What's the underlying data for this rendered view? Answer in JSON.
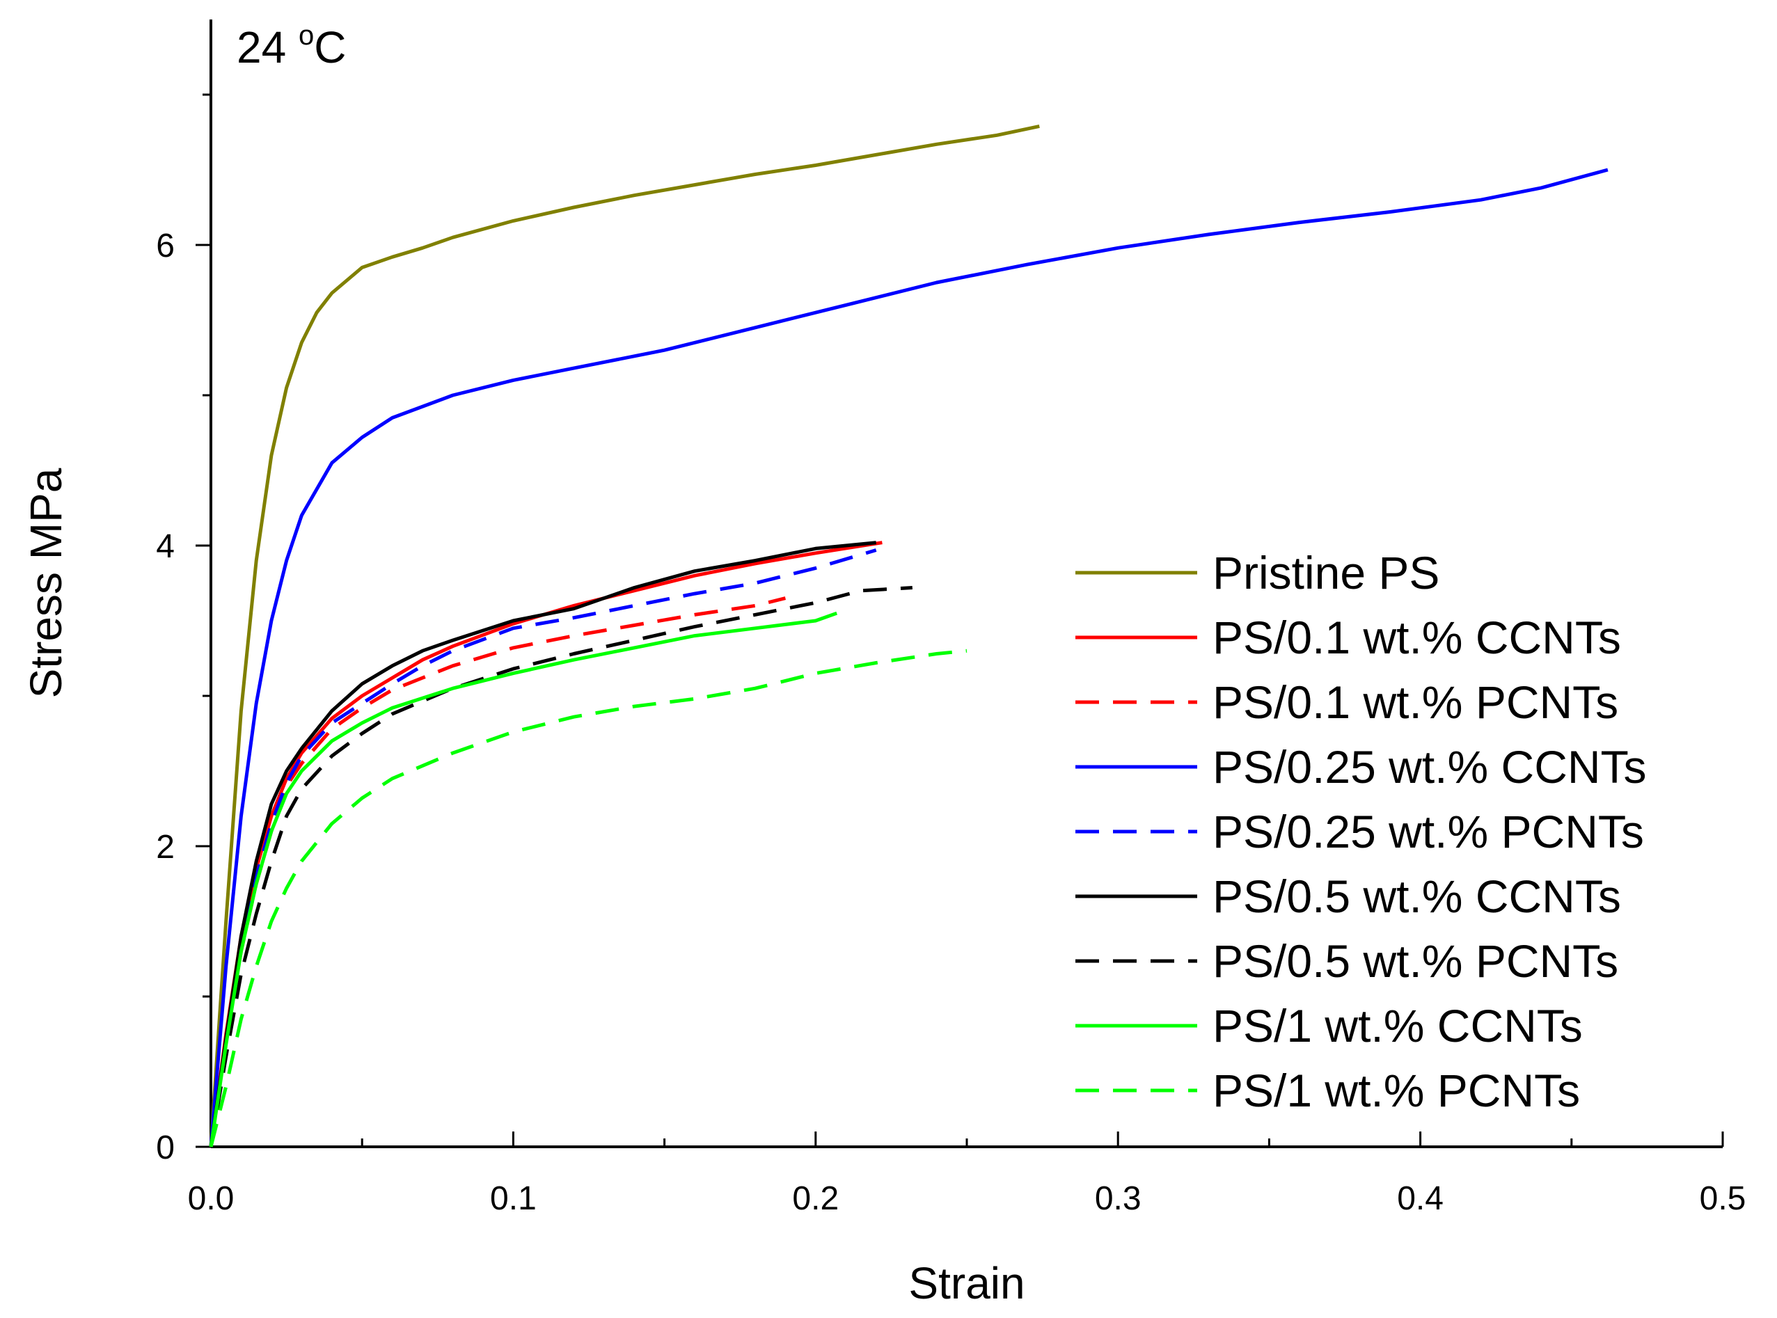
{
  "chart_data": {
    "type": "line",
    "title": "",
    "annotation": {
      "text": "24 ",
      "superscript": "o",
      "unit": "C"
    },
    "xlabel": "Strain",
    "ylabel": "Stress MPa",
    "xlim": [
      0,
      0.5
    ],
    "ylim": [
      0,
      7.5
    ],
    "x_major_ticks": [
      0,
      0.1,
      0.2,
      0.3,
      0.4,
      0.5
    ],
    "x_tick_labels": [
      "0.0",
      "0.1",
      "0.2",
      "0.3",
      "0.4",
      "0.5"
    ],
    "x_minor_ticks": [
      0.05,
      0.15,
      0.25,
      0.35,
      0.45
    ],
    "y_major_ticks": [
      0,
      2,
      4,
      6
    ],
    "y_tick_labels": [
      "0",
      "2",
      "4",
      "6"
    ],
    "y_minor_ticks": [
      1,
      3,
      5,
      7
    ],
    "grid": false,
    "legend_position": "center-right",
    "series": [
      {
        "name": "Pristine PS",
        "color": "#808000",
        "dashed": false,
        "x": [
          0,
          0.005,
          0.01,
          0.015,
          0.02,
          0.025,
          0.03,
          0.035,
          0.04,
          0.05,
          0.06,
          0.07,
          0.08,
          0.1,
          0.12,
          0.14,
          0.16,
          0.18,
          0.2,
          0.22,
          0.24,
          0.26,
          0.274
        ],
        "y": [
          0,
          1.5,
          2.9,
          3.9,
          4.6,
          5.05,
          5.35,
          5.55,
          5.68,
          5.85,
          5.92,
          5.98,
          6.05,
          6.16,
          6.25,
          6.33,
          6.4,
          6.47,
          6.53,
          6.6,
          6.67,
          6.73,
          6.79
        ]
      },
      {
        "name": "PS/0.1 wt.% CCNTs",
        "color": "#ff0000",
        "dashed": false,
        "x": [
          0,
          0.005,
          0.01,
          0.015,
          0.02,
          0.025,
          0.03,
          0.04,
          0.05,
          0.06,
          0.07,
          0.08,
          0.1,
          0.12,
          0.14,
          0.16,
          0.18,
          0.2,
          0.222
        ],
        "y": [
          0,
          0.75,
          1.4,
          1.85,
          2.2,
          2.45,
          2.62,
          2.85,
          3.0,
          3.12,
          3.24,
          3.33,
          3.48,
          3.6,
          3.7,
          3.8,
          3.88,
          3.95,
          4.02
        ]
      },
      {
        "name": "PS/0.1 wt.% PCNTs",
        "color": "#ff0000",
        "dashed": true,
        "x": [
          0,
          0.005,
          0.01,
          0.015,
          0.02,
          0.025,
          0.03,
          0.04,
          0.05,
          0.06,
          0.07,
          0.08,
          0.1,
          0.12,
          0.14,
          0.16,
          0.18,
          0.19
        ],
        "y": [
          0,
          0.7,
          1.3,
          1.75,
          2.1,
          2.4,
          2.55,
          2.78,
          2.92,
          3.04,
          3.12,
          3.2,
          3.32,
          3.4,
          3.47,
          3.54,
          3.6,
          3.65
        ]
      },
      {
        "name": "PS/0.25 wt.% CCNTs",
        "color": "#0000ff",
        "dashed": false,
        "x": [
          0,
          0.005,
          0.01,
          0.015,
          0.02,
          0.025,
          0.03,
          0.04,
          0.05,
          0.06,
          0.08,
          0.1,
          0.12,
          0.15,
          0.18,
          0.21,
          0.24,
          0.27,
          0.3,
          0.33,
          0.36,
          0.39,
          0.42,
          0.44,
          0.462
        ],
        "y": [
          0,
          1.2,
          2.2,
          2.95,
          3.5,
          3.9,
          4.2,
          4.55,
          4.72,
          4.85,
          5.0,
          5.1,
          5.18,
          5.3,
          5.45,
          5.6,
          5.75,
          5.87,
          5.98,
          6.07,
          6.15,
          6.22,
          6.3,
          6.38,
          6.5
        ]
      },
      {
        "name": "PS/0.25 wt.% PCNTs",
        "color": "#0000ff",
        "dashed": true,
        "x": [
          0,
          0.005,
          0.01,
          0.015,
          0.02,
          0.025,
          0.03,
          0.04,
          0.05,
          0.06,
          0.07,
          0.08,
          0.1,
          0.12,
          0.14,
          0.16,
          0.18,
          0.2,
          0.22
        ],
        "y": [
          0,
          0.72,
          1.35,
          1.8,
          2.15,
          2.42,
          2.6,
          2.82,
          2.95,
          3.08,
          3.2,
          3.3,
          3.45,
          3.52,
          3.6,
          3.68,
          3.75,
          3.85,
          3.97
        ]
      },
      {
        "name": "PS/0.5 wt.% CCNTs",
        "color": "#000000",
        "dashed": false,
        "x": [
          0,
          0.005,
          0.01,
          0.015,
          0.02,
          0.025,
          0.03,
          0.04,
          0.05,
          0.06,
          0.07,
          0.08,
          0.1,
          0.12,
          0.14,
          0.16,
          0.18,
          0.2,
          0.22
        ],
        "y": [
          0,
          0.72,
          1.4,
          1.9,
          2.28,
          2.5,
          2.65,
          2.9,
          3.08,
          3.2,
          3.3,
          3.37,
          3.5,
          3.58,
          3.72,
          3.83,
          3.9,
          3.98,
          4.02
        ]
      },
      {
        "name": "PS/0.5 wt.% PCNTs",
        "color": "#000000",
        "dashed": true,
        "x": [
          0,
          0.005,
          0.01,
          0.015,
          0.02,
          0.025,
          0.03,
          0.04,
          0.05,
          0.06,
          0.08,
          0.1,
          0.12,
          0.14,
          0.16,
          0.18,
          0.2,
          0.215,
          0.232
        ],
        "y": [
          0,
          0.6,
          1.15,
          1.55,
          1.9,
          2.2,
          2.38,
          2.6,
          2.75,
          2.88,
          3.05,
          3.18,
          3.28,
          3.37,
          3.46,
          3.54,
          3.62,
          3.7,
          3.72
        ]
      },
      {
        "name": "PS/1 wt.% CCNTs",
        "color": "#00ff00",
        "dashed": false,
        "x": [
          0,
          0.005,
          0.01,
          0.015,
          0.02,
          0.025,
          0.03,
          0.04,
          0.05,
          0.06,
          0.08,
          0.1,
          0.12,
          0.14,
          0.16,
          0.18,
          0.2,
          0.207
        ],
        "y": [
          0,
          0.68,
          1.3,
          1.75,
          2.1,
          2.35,
          2.5,
          2.7,
          2.82,
          2.92,
          3.05,
          3.15,
          3.24,
          3.32,
          3.4,
          3.45,
          3.5,
          3.55
        ]
      },
      {
        "name": "PS/1 wt.% PCNTs",
        "color": "#00ff00",
        "dashed": true,
        "x": [
          0,
          0.005,
          0.01,
          0.015,
          0.02,
          0.025,
          0.03,
          0.04,
          0.05,
          0.06,
          0.08,
          0.1,
          0.12,
          0.14,
          0.16,
          0.18,
          0.2,
          0.22,
          0.24,
          0.25
        ],
        "y": [
          0,
          0.4,
          0.85,
          1.2,
          1.5,
          1.72,
          1.9,
          2.15,
          2.32,
          2.45,
          2.62,
          2.76,
          2.86,
          2.93,
          2.98,
          3.05,
          3.15,
          3.22,
          3.28,
          3.3
        ]
      }
    ]
  }
}
